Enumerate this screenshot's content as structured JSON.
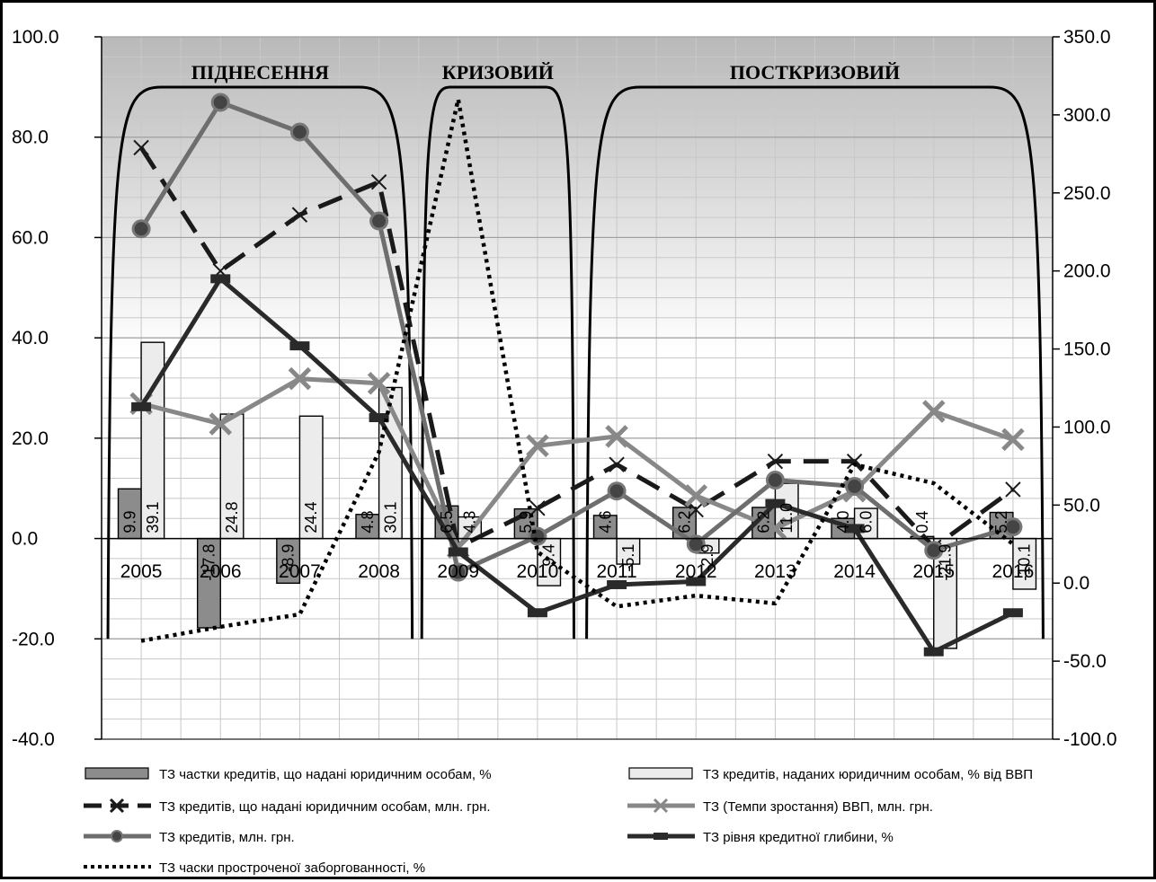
{
  "chart_data": {
    "type": "bar",
    "categories": [
      "2005",
      "2006",
      "2007",
      "2008",
      "2009",
      "2010",
      "2011",
      "2012",
      "2013",
      "2014",
      "2015",
      "2016"
    ],
    "y_left": {
      "min": -40,
      "max": 100,
      "step": 20,
      "ticks": [
        "-40.0",
        "-20.0",
        "0.0",
        "20.0",
        "40.0",
        "60.0",
        "80.0",
        "100.0"
      ]
    },
    "y_right": {
      "min": -100,
      "max": 350,
      "step": 50,
      "ticks": [
        "-100.0",
        "-50.0",
        "0.0",
        "50.0",
        "100.0",
        "150.0",
        "200.0",
        "250.0",
        "300.0",
        "350.0"
      ]
    },
    "grid": true,
    "legend_position": "bottom",
    "phases": [
      {
        "label": "ПІДНЕСЕННЯ",
        "from": 0,
        "to": 3
      },
      {
        "label": "КРИЗОВИЙ",
        "from": 4,
        "to": 5
      },
      {
        "label": "ПОСТКРИЗОВИЙ",
        "from": 6,
        "to": 11
      }
    ],
    "series": [
      {
        "name": "ТЗ частки кредитів, що надані юридичним особам, %",
        "kind": "bar",
        "axis": "left",
        "color": "#8c8c8c",
        "values": [
          9.9,
          -17.8,
          -8.9,
          4.8,
          6.5,
          5.9,
          4.6,
          6.2,
          6.2,
          4.0,
          0.4,
          5.2
        ],
        "labels": [
          "9.9",
          "-17.8",
          "-8.9",
          "4.8",
          "6.5",
          "5.9",
          "4.6",
          "6.2",
          "6.2",
          "4.0",
          "0.4",
          "5.2"
        ]
      },
      {
        "name": "ТЗ кредитів, наданих юридичним особам, % від ВВП",
        "kind": "bar",
        "axis": "left",
        "color": "#ececec",
        "values": [
          39.1,
          24.8,
          24.4,
          30.1,
          4.3,
          -9.4,
          -5.1,
          -2.9,
          11.0,
          6.0,
          -21.9,
          -10.1
        ],
        "labels": [
          "39.1",
          "24.8",
          "24.4",
          "30.1",
          "4.3",
          "-9.4",
          "-5.1",
          "-2.9",
          "11.0",
          "6.0",
          "-21.9",
          "-10.1"
        ]
      },
      {
        "name": "ТЗ кредитів, що надані юридичним особам, млн. грн.",
        "kind": "line",
        "style": "longdash",
        "marker": "x",
        "axis": "right",
        "color": "#1a1a1a",
        "values": [
          279,
          200,
          236,
          257,
          23,
          48,
          76,
          47,
          78,
          78,
          23,
          60
        ]
      },
      {
        "name": "ТЗ (Темпи зростання) ВВП, млн. грн.",
        "kind": "line",
        "style": "solid",
        "marker": "x",
        "axis": "right",
        "color": "#888888",
        "values": [
          115,
          102,
          131,
          128,
          23,
          88,
          94,
          56,
          35,
          59,
          110,
          92
        ]
      },
      {
        "name": "ТЗ кредитів, млн. грн.",
        "kind": "line",
        "style": "solid",
        "marker": "circle",
        "axis": "right",
        "color": "#6e6e6e",
        "values": [
          227,
          308,
          289,
          232,
          7,
          30,
          59,
          25,
          66,
          62,
          21,
          36
        ]
      },
      {
        "name": "ТЗ рівня кредитної глибини, %",
        "kind": "line",
        "style": "solid",
        "marker": "dash",
        "axis": "right",
        "color": "#2a2a2a",
        "values": [
          113,
          195,
          152,
          106,
          20,
          -19,
          -1,
          1,
          51,
          35,
          -44,
          -19
        ]
      },
      {
        "name": "ТЗ часки простроченої заборгованності, %",
        "kind": "line",
        "style": "dotted",
        "marker": "none",
        "axis": "right",
        "color": "#000000",
        "values": [
          -37,
          -28,
          -20,
          84,
          310,
          20,
          -15,
          -8,
          -13,
          76,
          64,
          25
        ]
      }
    ]
  }
}
